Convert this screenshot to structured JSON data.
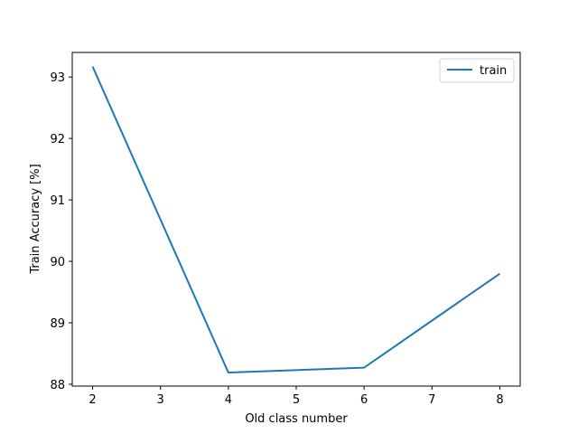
{
  "chart_data": {
    "type": "line",
    "title": "",
    "xlabel": "Old class number",
    "ylabel": "Train Accuracy [%]",
    "xlim": [
      1.7,
      8.3
    ],
    "ylim": [
      87.97,
      93.4
    ],
    "x_ticks": [
      2,
      3,
      4,
      5,
      6,
      7,
      8
    ],
    "x_tick_labels": [
      "2",
      "3",
      "4",
      "5",
      "6",
      "7",
      "8"
    ],
    "y_ticks": [
      88,
      89,
      90,
      91,
      92,
      93
    ],
    "y_tick_labels": [
      "88",
      "89",
      "90",
      "91",
      "92",
      "93"
    ],
    "grid": false,
    "legend_position": "upper right",
    "series": [
      {
        "name": "train",
        "color": "#1f77b4",
        "x": [
          2,
          4,
          6,
          8
        ],
        "y": [
          93.17,
          88.19,
          88.27,
          89.8
        ]
      }
    ]
  }
}
